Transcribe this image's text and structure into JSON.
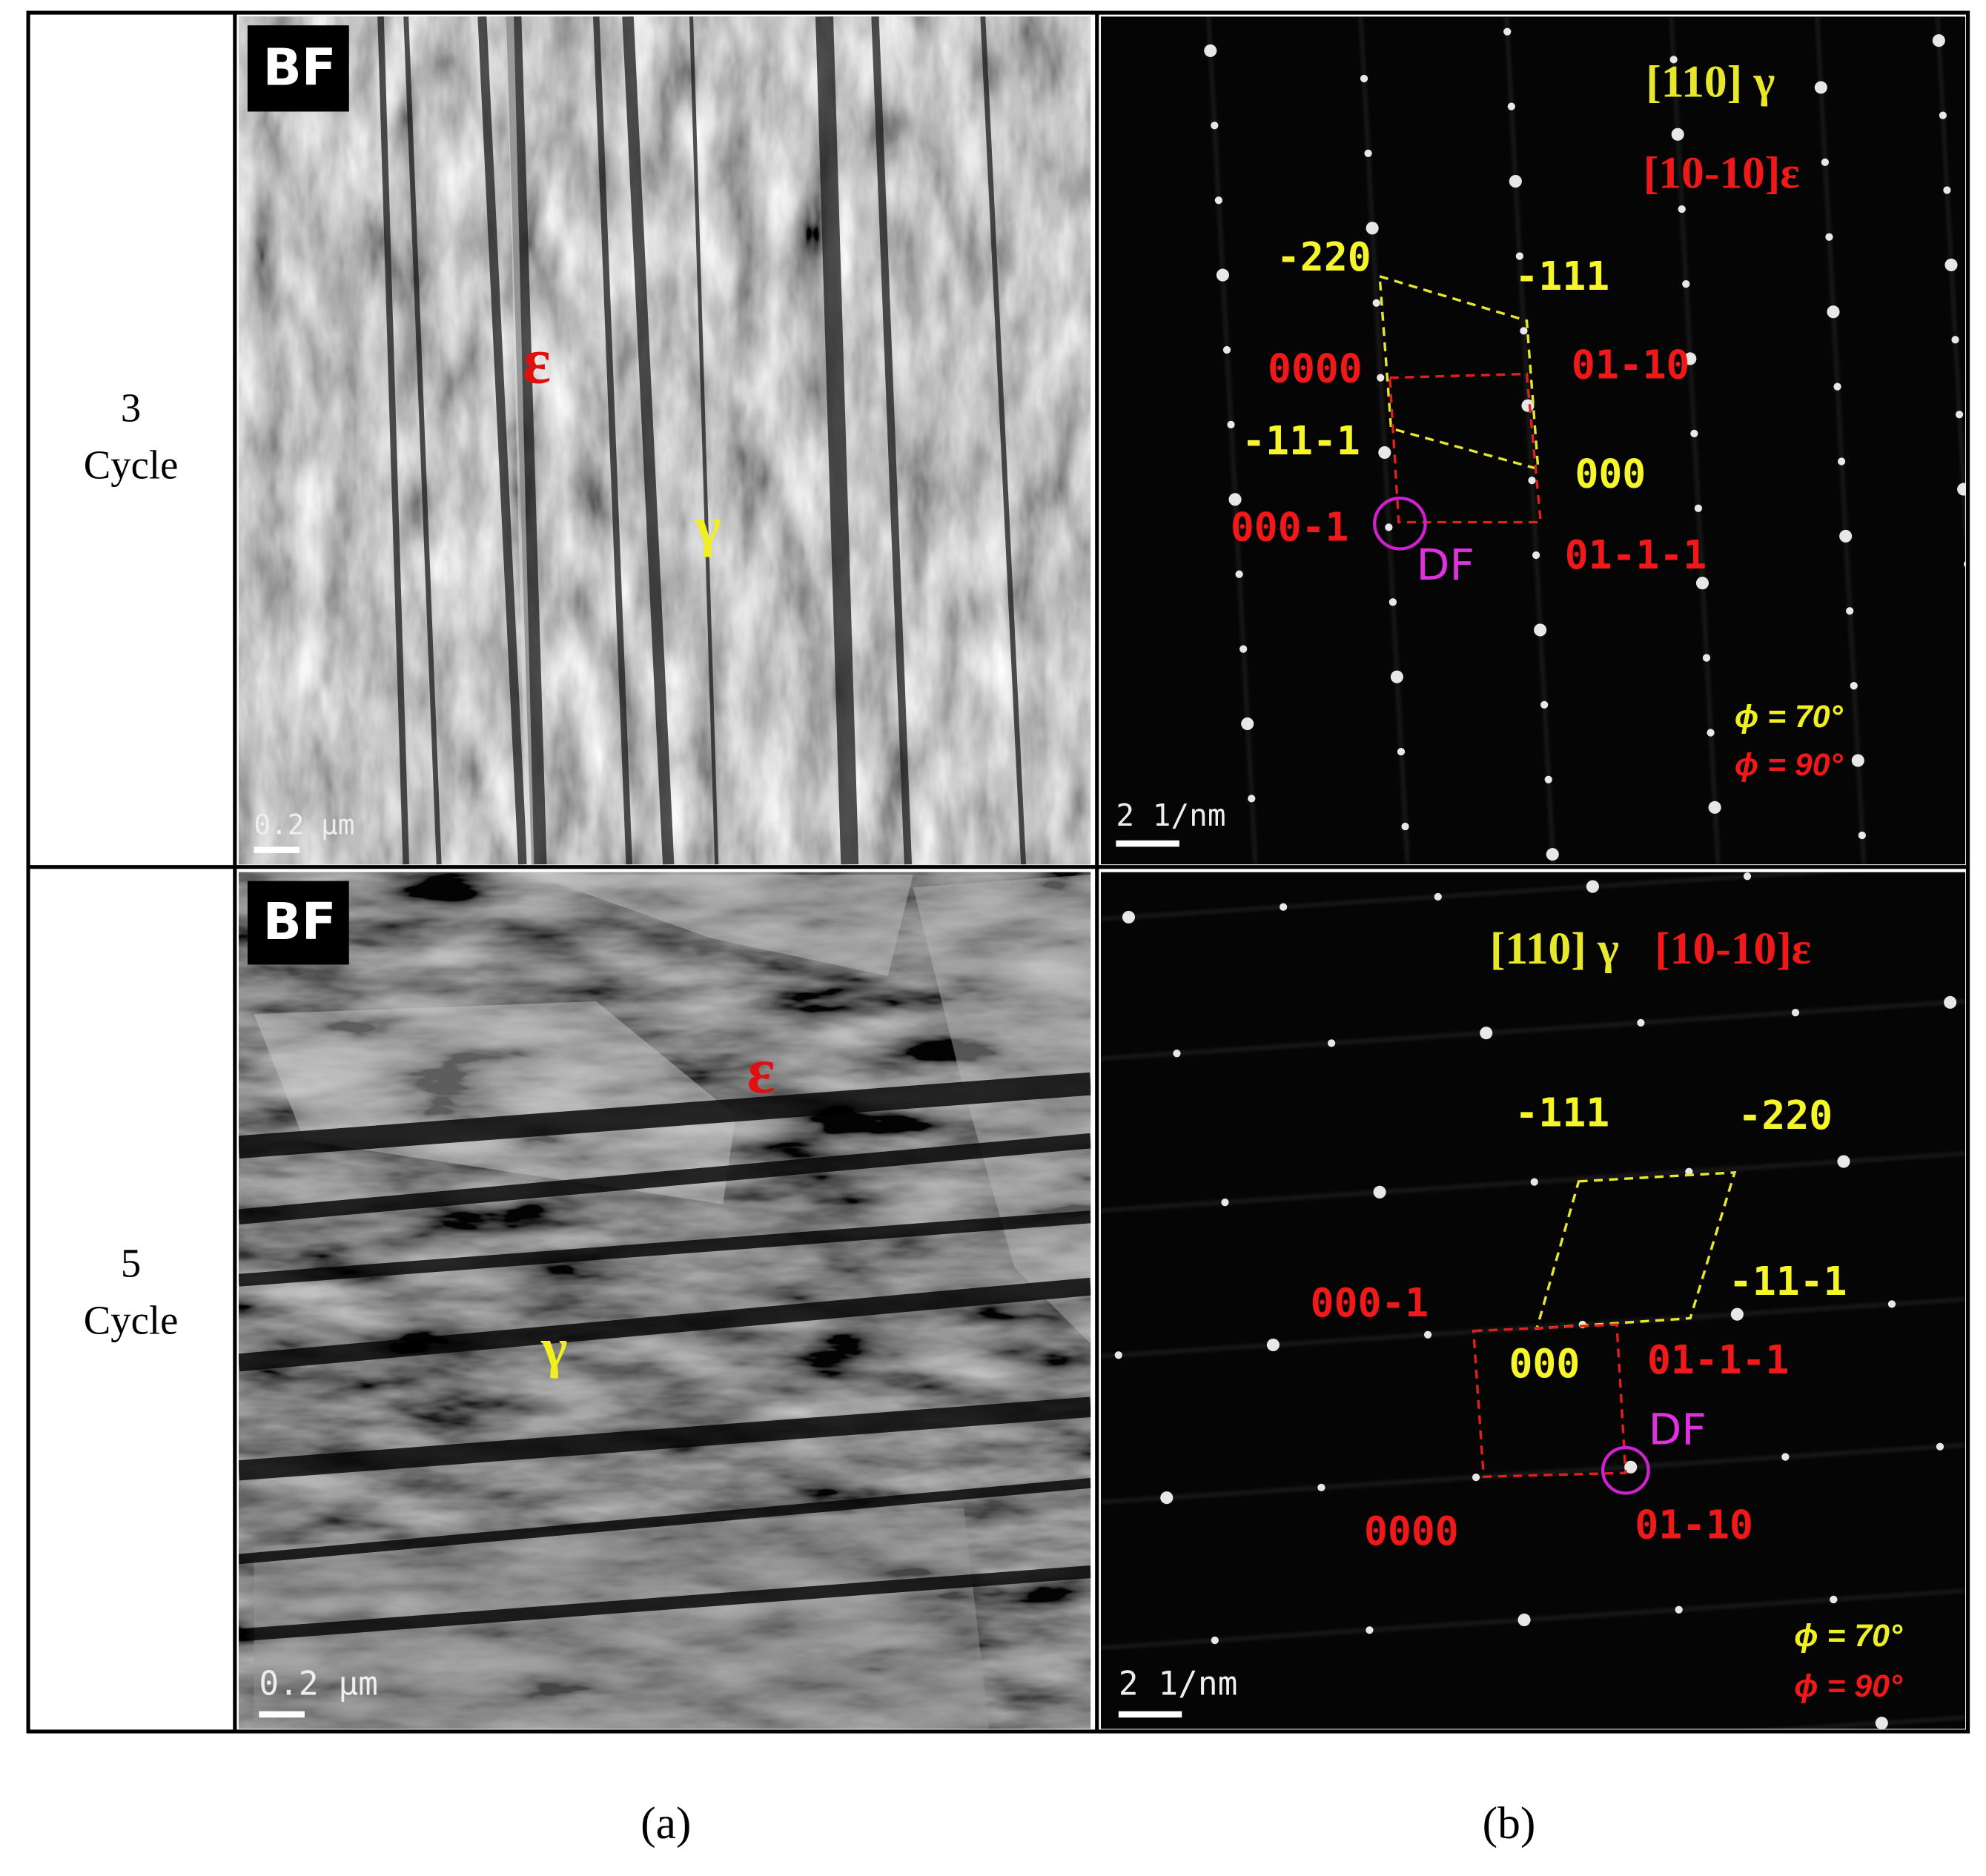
{
  "rows": [
    {
      "cycle": [
        "3",
        "Cycle"
      ],
      "bright_field": {
        "tag": "BF",
        "phases": [
          "ε",
          "γ"
        ],
        "scale_bar": "0.2 μm"
      },
      "diffraction": {
        "zone_axes": [
          "[110] γ",
          "[10-10]ε"
        ],
        "gamma_spots": [
          "-220",
          "-111",
          "-11-1",
          "000"
        ],
        "epsilon_spots": [
          "0000",
          "01-10",
          "000-1",
          "01-1-1"
        ],
        "aperture": "DF",
        "angles": [
          "ϕ = 70°",
          "ϕ = 90°"
        ],
        "scale_bar": "2 1/nm"
      }
    },
    {
      "cycle": [
        "5",
        "Cycle"
      ],
      "bright_field": {
        "tag": "BF",
        "phases": [
          "ε",
          "γ"
        ],
        "scale_bar": "0.2 μm"
      },
      "diffraction": {
        "zone_axes": [
          "[110] γ",
          "[10-10]ε"
        ],
        "gamma_spots": [
          "-111",
          "-220",
          "-11-1",
          "000"
        ],
        "epsilon_spots": [
          "000-1",
          "01-1-1",
          "0000",
          "01-10"
        ],
        "aperture": "DF",
        "angles": [
          "ϕ = 70°",
          "ϕ = 90°"
        ],
        "scale_bar": "2 1/nm"
      }
    }
  ],
  "captions": [
    "(a)",
    "(b)"
  ]
}
